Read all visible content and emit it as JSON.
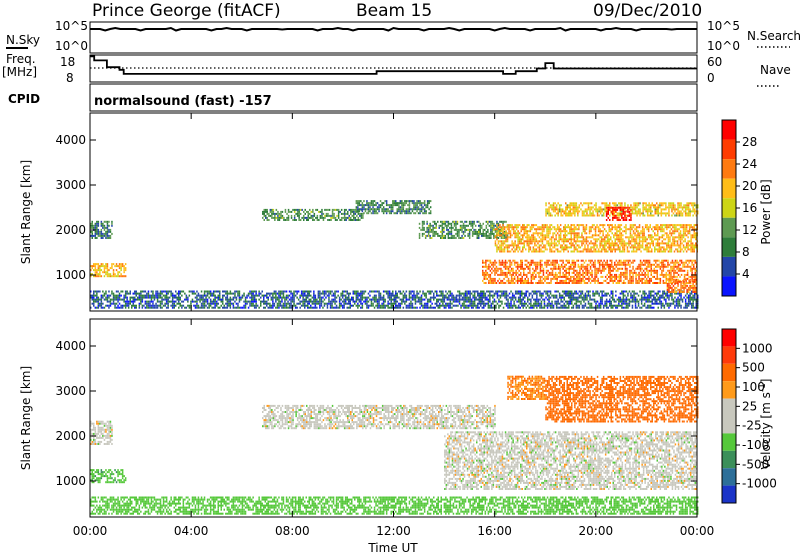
{
  "header": {
    "title": "Prince George (fitACF)",
    "beam": "Beam 15",
    "date": "09/Dec/2010"
  },
  "top_panels": {
    "nsky_label": "N.Sky",
    "nsky_ticks": [
      "10^5",
      "10^0"
    ],
    "nsearch_label": "N.Search",
    "nsearch_ticks": [
      "10^5",
      "10^0"
    ],
    "freq_label": "Freq.",
    "freq_unit": "[MHz]",
    "freq_ticks": [
      "18",
      "8"
    ],
    "nave_label": "Nave",
    "nave_ticks": [
      "60",
      "0"
    ],
    "cpid_label": "CPID",
    "cpid_text": "normalsound (fast) -157"
  },
  "colors": {
    "power_scale": [
      "#0a14ff",
      "#2346a8",
      "#2e7d3a",
      "#5e9a52",
      "#cdd516",
      "#ffbd18",
      "#ff7a10",
      "#ff3c00",
      "#ff0000"
    ],
    "velocity_scale": [
      "#1b34c8",
      "#2d6f99",
      "#3b8f5a",
      "#55c83a",
      "#c8c8be",
      "#c8c8be",
      "#ff9a1a",
      "#ff6a00",
      "#ff3a0a",
      "#ff0000"
    ]
  },
  "chart_data": [
    {
      "type": "line",
      "series": [
        {
          "name": "N.Sky",
          "x": [
            "00:00",
            "02:00",
            "04:00",
            "06:00",
            "08:00",
            "10:00",
            "12:00",
            "14:00",
            "16:00",
            "18:00",
            "20:00",
            "22:00",
            "00:00"
          ],
          "values": [
            100000.0,
            100000.0,
            100000.0,
            100000.0,
            100000.0,
            100000.0,
            100000.0,
            100000.0,
            100000.0,
            100000.0,
            100000.0,
            100000.0,
            100000.0
          ]
        }
      ],
      "yticks": [
        "10^5",
        "10^0"
      ],
      "xlabel": "",
      "ylabel": ""
    },
    {
      "type": "line",
      "series": [
        {
          "name": "Freq.",
          "x": [
            "00:00",
            "00:10",
            "00:40",
            "01:10",
            "01:20",
            "10:40",
            "11:20",
            "16:20",
            "16:50",
            "17:40",
            "18:00",
            "18:20",
            "19:00",
            "24:00"
          ],
          "values": [
            17.5,
            16,
            13.5,
            12.5,
            11,
            11,
            12,
            11,
            12,
            13,
            15,
            13,
            13,
            13
          ]
        }
      ],
      "yticks": [
        "18",
        "8"
      ],
      "xlabel": "",
      "ylabel": "[MHz]"
    },
    {
      "type": "heatmap",
      "title": "",
      "xlabel": "",
      "ylabel": "Slant Range [km]",
      "xticks": [
        "00:00",
        "04:00",
        "08:00",
        "12:00",
        "16:00",
        "20:00",
        "00:00"
      ],
      "yticks": [
        "1000",
        "2000",
        "3000",
        "4000"
      ],
      "xlim": [
        0,
        24
      ],
      "ylim": [
        200,
        4600
      ],
      "colorbar_label": "Power [dB]",
      "colorbar_ticks": [
        "28",
        "24",
        "20",
        "16",
        "12",
        "8",
        "4"
      ],
      "colorbar_range": [
        0,
        30
      ],
      "regions": [
        {
          "t": [
            0.0,
            0.9
          ],
          "r": [
            1800,
            2200
          ],
          "v": 8
        },
        {
          "t": [
            0.0,
            1.4
          ],
          "r": [
            950,
            1250
          ],
          "v": 18
        },
        {
          "t": [
            0.0,
            24.0
          ],
          "r": [
            250,
            650
          ],
          "v": 6
        },
        {
          "t": [
            6.8,
            10.8
          ],
          "r": [
            2200,
            2450
          ],
          "v": 10
        },
        {
          "t": [
            10.5,
            13.5
          ],
          "r": [
            2350,
            2650
          ],
          "v": 9
        },
        {
          "t": [
            13.0,
            16.5
          ],
          "r": [
            1800,
            2200
          ],
          "v": 10
        },
        {
          "t": [
            15.5,
            24.0
          ],
          "r": [
            800,
            1300
          ],
          "v": 22
        },
        {
          "t": [
            16.0,
            24.0
          ],
          "r": [
            1500,
            2100
          ],
          "v": 19
        },
        {
          "t": [
            18.0,
            24.0
          ],
          "r": [
            2300,
            2600
          ],
          "v": 17
        },
        {
          "t": [
            20.4,
            21.4
          ],
          "r": [
            2200,
            2500
          ],
          "v": 27
        },
        {
          "t": [
            22.8,
            24.0
          ],
          "r": [
            600,
            900
          ],
          "v": 22
        }
      ]
    },
    {
      "type": "heatmap",
      "title": "",
      "xlabel": "Time UT",
      "ylabel": "Slant Range [km]",
      "xticks": [
        "00:00",
        "04:00",
        "08:00",
        "12:00",
        "16:00",
        "20:00",
        "00:00"
      ],
      "yticks": [
        "1000",
        "2000",
        "3000",
        "4000"
      ],
      "xlim": [
        0,
        24
      ],
      "ylim": [
        200,
        4600
      ],
      "colorbar_label": "Velocity [m s^-1]",
      "colorbar_ticks": [
        "1000",
        "500",
        "100",
        "25",
        "-25",
        "-100",
        "-500",
        "-1000"
      ],
      "regions": [
        {
          "t": [
            0.0,
            0.9
          ],
          "r": [
            1800,
            2300
          ],
          "v": 0
        },
        {
          "t": [
            0.0,
            1.4
          ],
          "r": [
            950,
            1250
          ],
          "v": 80
        },
        {
          "t": [
            0.0,
            24.0
          ],
          "r": [
            250,
            650
          ],
          "v": 60
        },
        {
          "t": [
            6.8,
            16.0
          ],
          "r": [
            2150,
            2650
          ],
          "v": 0
        },
        {
          "t": [
            14.0,
            24.0
          ],
          "r": [
            800,
            2100
          ],
          "v": 0
        },
        {
          "t": [
            18.0,
            24.0
          ],
          "r": [
            2300,
            3300
          ],
          "v": -150
        },
        {
          "t": [
            16.5,
            18.0
          ],
          "r": [
            2800,
            3300
          ],
          "v": -100
        }
      ]
    }
  ]
}
